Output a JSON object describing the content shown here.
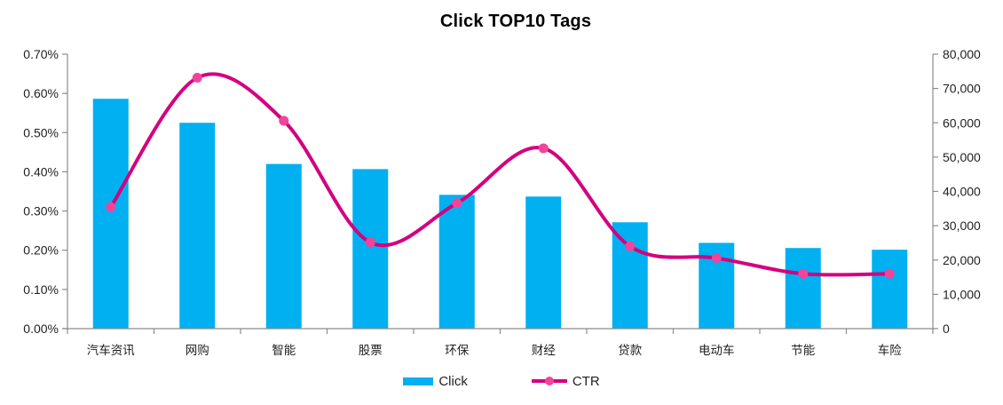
{
  "chart_data": {
    "type": "combo",
    "title": "Click TOP10 Tags",
    "categories": [
      "汽车资讯",
      "网购",
      "智能",
      "股票",
      "环保",
      "财经",
      "贷款",
      "电动车",
      "节能",
      "车险"
    ],
    "series": [
      {
        "name": "Click",
        "type": "bar",
        "axis": "right",
        "values": [
          67000,
          60000,
          48000,
          46500,
          39000,
          38500,
          31000,
          25000,
          23500,
          23000
        ]
      },
      {
        "name": "CTR",
        "type": "line",
        "axis": "left",
        "unit": "%",
        "values": [
          0.31,
          0.64,
          0.53,
          0.22,
          0.32,
          0.46,
          0.21,
          0.18,
          0.14,
          0.14
        ]
      }
    ],
    "left_axis": {
      "min": 0,
      "max": 0.7,
      "format": "percent",
      "tick_labels": [
        "0.00%",
        "0.10%",
        "0.20%",
        "0.30%",
        "0.40%",
        "0.50%",
        "0.60%",
        "0.70%"
      ]
    },
    "right_axis": {
      "min": 0,
      "max": 80000,
      "format": "number",
      "tick_labels": [
        "0",
        "10,000",
        "20,000",
        "30,000",
        "40,000",
        "50,000",
        "60,000",
        "70,000",
        "80,000"
      ]
    },
    "legend": {
      "position": "bottom",
      "items": [
        "Click",
        "CTR"
      ]
    },
    "grid": false,
    "colors": {
      "bar": "#00B0F0",
      "line": "#D4007F",
      "marker_fill": "#F0459B",
      "axis": "#8C8C8C",
      "text": "#1F1F1F",
      "background": "#FFFFFF"
    }
  }
}
